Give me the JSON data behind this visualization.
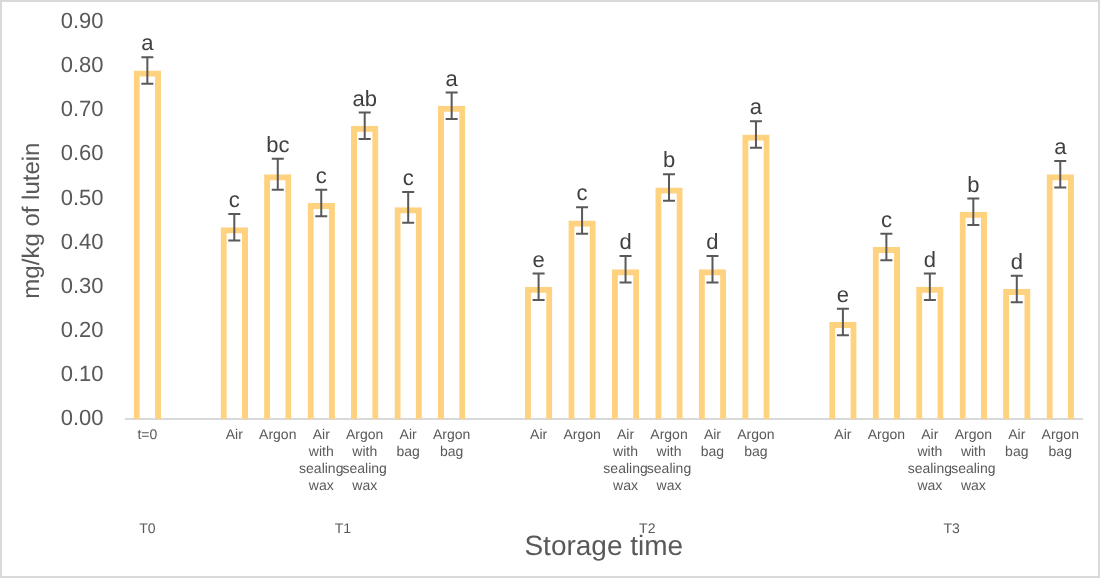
{
  "chart_data": {
    "type": "bar",
    "xlabel": "Storage time",
    "ylabel": "mg/kg of lutein",
    "categories": [
      "t=0",
      null,
      "Air",
      "Argon",
      "Air with sealing wax",
      "Argon with sealing wax",
      "Air bag",
      "Argon bag",
      null,
      "Air",
      "Argon",
      "Air with sealing wax",
      "Argon with sealing wax",
      "Air bag",
      "Argon bag",
      null,
      "Air",
      "Argon",
      "Air with sealing wax",
      "Argon with sealing wax",
      "Air bag",
      "Argon bag"
    ],
    "values": [
      0.79,
      null,
      0.435,
      0.555,
      0.49,
      0.665,
      0.48,
      0.71,
      null,
      0.3,
      0.45,
      0.34,
      0.525,
      0.34,
      0.645,
      null,
      0.22,
      0.39,
      0.3,
      0.47,
      0.295,
      0.555
    ],
    "errors": [
      0.03,
      null,
      0.03,
      0.035,
      0.03,
      0.03,
      0.035,
      0.03,
      null,
      0.03,
      0.03,
      0.03,
      0.03,
      0.03,
      0.03,
      null,
      0.03,
      0.03,
      0.03,
      0.03,
      0.03,
      0.03
    ],
    "value_labels": [
      "a",
      null,
      "c",
      "bc",
      "c",
      "ab",
      "c",
      "a",
      null,
      "e",
      "c",
      "d",
      "b",
      "d",
      "a",
      null,
      "e",
      "c",
      "d",
      "b",
      "d",
      "a"
    ],
    "color": "#ffd280",
    "ylim": [
      0,
      0.9
    ],
    "yticks": [
      {
        "value": 0,
        "label": "0.00"
      },
      {
        "value": 0.1,
        "label": "0.10"
      },
      {
        "value": 0.2,
        "label": "0.20"
      },
      {
        "value": 0.3,
        "label": "0.30"
      },
      {
        "value": 0.4,
        "label": "0.40"
      },
      {
        "value": 0.5,
        "label": "0.50"
      },
      {
        "value": 0.6,
        "label": "0.60"
      },
      {
        "value": 0.7,
        "label": "0.70"
      },
      {
        "value": 0.8,
        "label": "0.80"
      },
      {
        "value": 0.9,
        "label": "0.90"
      }
    ],
    "annotations": [
      "T0",
      "T1",
      "T2",
      "T3"
    ],
    "grid": false,
    "legend": false
  }
}
